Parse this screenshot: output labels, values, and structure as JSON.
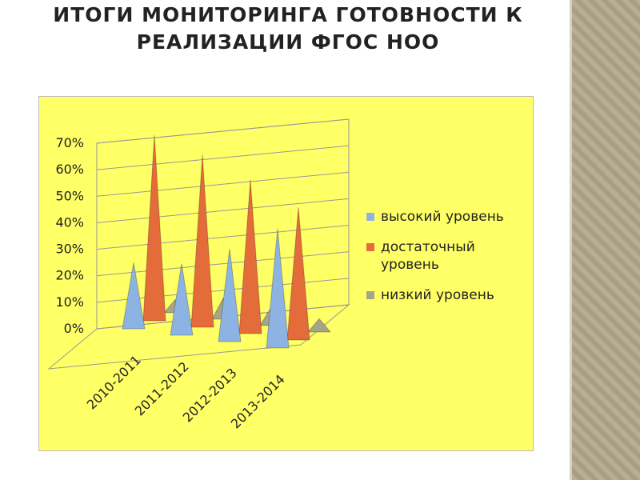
{
  "chart_data": {
    "type": "bar3d-cone",
    "title": "ИТОГИ МОНИТОРИНГА ГОТОВНОСТИ К РЕАЛИЗАЦИИ ФГОС НОО",
    "categories": [
      "2010-2011",
      "2011-2012",
      "2012-2013",
      "2013-2014"
    ],
    "series": [
      {
        "name": "высокий уровень",
        "color": "#8db3e2",
        "values": [
          25,
          27,
          35,
          45
        ]
      },
      {
        "name": "достаточный уровень",
        "color": "#e46c3a",
        "values": [
          70,
          65,
          58,
          50
        ]
      },
      {
        "name": "низкий уровень",
        "color": "#a5a58a",
        "values": [
          5,
          8,
          7,
          5
        ]
      }
    ],
    "ylim": [
      0,
      70
    ],
    "yticks": [
      {
        "value": 0,
        "label": "0%"
      },
      {
        "value": 10,
        "label": "10%"
      },
      {
        "value": 20,
        "label": "20%"
      },
      {
        "value": 30,
        "label": "30%"
      },
      {
        "value": 40,
        "label": "40%"
      },
      {
        "value": 50,
        "label": "50%"
      },
      {
        "value": 60,
        "label": "60%"
      },
      {
        "value": 70,
        "label": "70%"
      }
    ],
    "grid": true,
    "legend": "right",
    "background": "#ffff66"
  }
}
